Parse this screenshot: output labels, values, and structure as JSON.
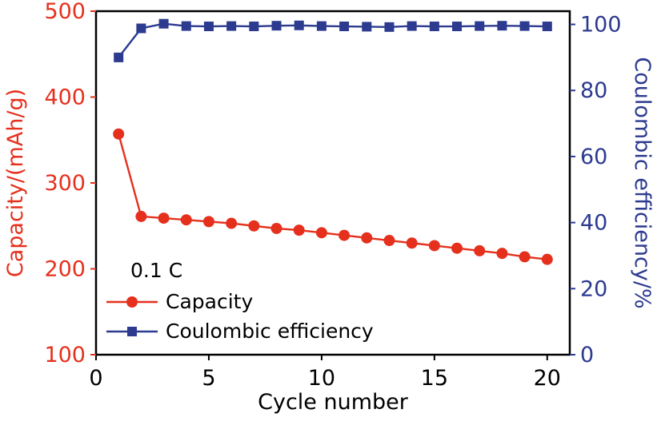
{
  "chart_data": {
    "type": "line",
    "title": "",
    "xlabel": "Cycle number",
    "xlim": [
      0,
      21
    ],
    "x_ticks": [
      0,
      5,
      10,
      15,
      20
    ],
    "grid": false,
    "legend_position": "lower-left-inside",
    "annotation": "0.1 C",
    "y_left": {
      "label": "Capacity/(mAh/g)",
      "lim": [
        100,
        500
      ],
      "ticks": [
        100,
        200,
        300,
        400,
        500
      ],
      "color": "#e5301d"
    },
    "y_right": {
      "label": "Coulombic efficiency/%",
      "lim": [
        0,
        104
      ],
      "ticks": [
        0,
        20,
        40,
        60,
        80,
        100
      ],
      "color": "#2c3a8f"
    },
    "series": [
      {
        "name": "Capacity",
        "axis": "left",
        "marker": "circle",
        "color": "#e5301d",
        "x": [
          1,
          2,
          3,
          4,
          5,
          6,
          7,
          8,
          9,
          10,
          11,
          12,
          13,
          14,
          15,
          16,
          17,
          18,
          19,
          20
        ],
        "values": [
          357,
          261,
          259,
          257,
          255,
          253,
          250,
          247,
          245,
          242,
          239,
          236,
          233,
          230,
          227,
          224,
          221,
          218,
          214,
          211
        ]
      },
      {
        "name": "Coulombic efficiency",
        "axis": "right",
        "marker": "square",
        "color": "#2c3a8f",
        "x": [
          1,
          2,
          3,
          4,
          5,
          6,
          7,
          8,
          9,
          10,
          11,
          12,
          13,
          14,
          15,
          16,
          17,
          18,
          19,
          20
        ],
        "values": [
          90,
          98.8,
          100.2,
          99.5,
          99.4,
          99.5,
          99.4,
          99.6,
          99.7,
          99.5,
          99.4,
          99.3,
          99.2,
          99.5,
          99.4,
          99.4,
          99.5,
          99.6,
          99.5,
          99.4
        ]
      }
    ]
  }
}
